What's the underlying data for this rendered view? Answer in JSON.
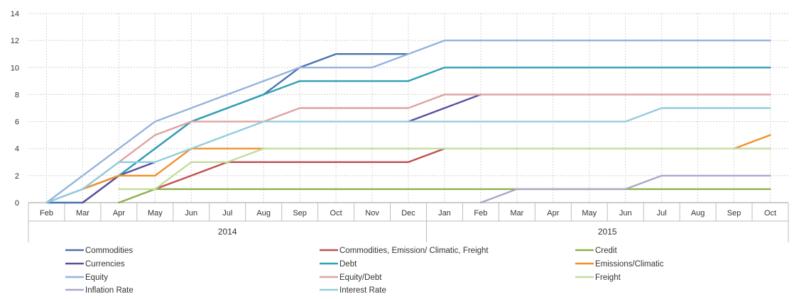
{
  "chart_data": {
    "type": "line",
    "title": "",
    "xlabel": "",
    "ylabel": "",
    "ylim": [
      0,
      14
    ],
    "yticks": [
      0,
      2,
      4,
      6,
      8,
      10,
      12,
      14
    ],
    "grid": true,
    "legend_position": "bottom",
    "categories": [
      "Feb",
      "Mar",
      "Apr",
      "May",
      "Jun",
      "Jul",
      "Aug",
      "Sep",
      "Oct",
      "Nov",
      "Dec",
      "Jan",
      "Feb",
      "Mar",
      "Apr",
      "May",
      "Jun",
      "Jul",
      "Aug",
      "Sep",
      "Oct"
    ],
    "year_groups": [
      {
        "label": "2014",
        "start": 0,
        "end": 10
      },
      {
        "label": "2015",
        "start": 11,
        "end": 20
      }
    ],
    "series": [
      {
        "name": "Commodities",
        "color": "#4a72b0",
        "values": [
          0,
          0,
          2,
          4,
          6,
          7,
          8,
          10,
          11,
          11,
          11,
          null,
          null,
          null,
          null,
          null,
          null,
          null,
          null,
          null,
          null
        ]
      },
      {
        "name": "Commodities, Emission/ Climatic, Freight",
        "color": "#c0504d",
        "values": [
          null,
          null,
          null,
          1,
          2,
          3,
          3,
          3,
          3,
          3,
          3,
          4,
          null,
          null,
          null,
          null,
          null,
          null,
          null,
          null,
          null
        ]
      },
      {
        "name": "Credit",
        "color": "#8db04a",
        "values": [
          null,
          null,
          0,
          1,
          1,
          1,
          1,
          1,
          1,
          1,
          1,
          1,
          1,
          1,
          1,
          1,
          1,
          1,
          1,
          1,
          1
        ]
      },
      {
        "name": "Currencies",
        "color": "#5b4e9e",
        "values": [
          null,
          0,
          2,
          3,
          null,
          null,
          null,
          null,
          null,
          null,
          6,
          7,
          8,
          null,
          null,
          null,
          null,
          null,
          null,
          null,
          null
        ]
      },
      {
        "name": "Debt",
        "color": "#31a0b5",
        "values": [
          0,
          1,
          2,
          4,
          6,
          7,
          8,
          9,
          9,
          9,
          9,
          10,
          10,
          10,
          10,
          10,
          10,
          10,
          10,
          10,
          10
        ]
      },
      {
        "name": "Emissions/Climatic",
        "color": "#f0902a",
        "values": [
          null,
          1,
          2,
          2,
          4,
          4,
          4,
          null,
          null,
          null,
          null,
          null,
          null,
          null,
          null,
          null,
          null,
          null,
          null,
          4,
          5
        ]
      },
      {
        "name": "Equity",
        "color": "#95b3de",
        "values": [
          0,
          2,
          4,
          6,
          7,
          8,
          9,
          10,
          10,
          10,
          11,
          12,
          12,
          12,
          12,
          12,
          12,
          12,
          12,
          12,
          12
        ]
      },
      {
        "name": "Equity/Debt",
        "color": "#dea3a1",
        "values": [
          null,
          1,
          3,
          5,
          6,
          6,
          6,
          7,
          7,
          7,
          7,
          8,
          8,
          8,
          8,
          8,
          8,
          8,
          8,
          8,
          8
        ]
      },
      {
        "name": "Freight",
        "color": "#c3dc9c",
        "values": [
          null,
          null,
          1,
          1,
          3,
          3,
          4,
          4,
          4,
          4,
          4,
          4,
          4,
          4,
          4,
          4,
          4,
          4,
          4,
          4,
          4
        ]
      },
      {
        "name": "Inflation Rate",
        "color": "#ada6cb",
        "values": [
          null,
          null,
          null,
          null,
          null,
          null,
          null,
          null,
          null,
          null,
          null,
          null,
          0,
          1,
          1,
          1,
          1,
          2,
          2,
          2,
          2
        ]
      },
      {
        "name": "Interest Rate",
        "color": "#92cddc",
        "values": [
          0,
          1,
          3,
          3,
          4,
          5,
          6,
          6,
          6,
          6,
          6,
          6,
          6,
          6,
          6,
          6,
          6,
          7,
          7,
          7,
          7
        ]
      }
    ]
  }
}
